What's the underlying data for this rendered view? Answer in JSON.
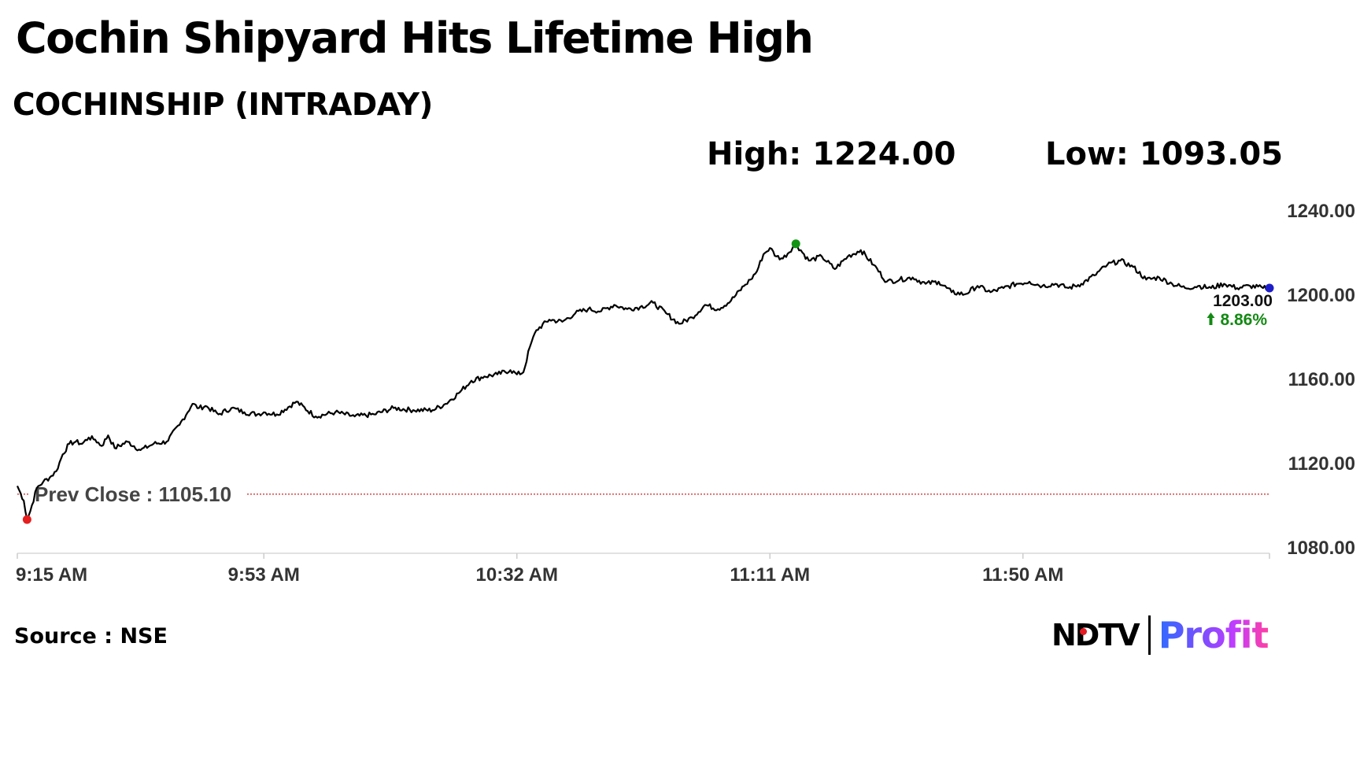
{
  "header": {
    "title": "Cochin Shipyard Hits Lifetime High",
    "subtitle": "COCHINSHIP (INTRADAY)",
    "high_text": "High: 1224.00",
    "low_text": "Low: 1093.05"
  },
  "footer": {
    "source": "Source : NSE",
    "logo_left": "NDTV",
    "logo_right": "Profit"
  },
  "colors": {
    "line": "#000000",
    "prev_close_line": "#d22020",
    "high_marker": "#139413",
    "low_marker": "#e61e1e",
    "last_marker": "#1e1ec8",
    "change_up": "#138a13",
    "axis_text": "#333333"
  },
  "chart_data": {
    "type": "line",
    "title": "",
    "xlabel": "",
    "ylabel": "",
    "ylim": [
      1080,
      1240
    ],
    "y_ticks": [
      "1240.00",
      "1200.00",
      "1160.00",
      "1120.00",
      "1080.00"
    ],
    "x_ticks": [
      "9:15 AM",
      "9:53 AM",
      "10:32 AM",
      "11:11 AM",
      "11:50 AM"
    ],
    "x_tick_minutes": [
      0,
      38,
      77,
      116,
      155
    ],
    "x_range_minutes": [
      0,
      193
    ],
    "grid": false,
    "prev_close": 1105.1,
    "prev_close_label": "Prev Close : 1105.10",
    "high": {
      "minute": 120,
      "value": 1224.0
    },
    "low": {
      "minute": 1.5,
      "value": 1093.05
    },
    "last": {
      "minute": 193,
      "value": 1203.0,
      "label": "1203.00",
      "change": "8.86%"
    },
    "series": [
      {
        "x": [
          0,
          1,
          1.5,
          2,
          3,
          4,
          5,
          6,
          7,
          8,
          9,
          10,
          11,
          12,
          13,
          14,
          15,
          17,
          19,
          21,
          23,
          25,
          27,
          28,
          29,
          31,
          33,
          35,
          37,
          38,
          40,
          43,
          46,
          49,
          52,
          55,
          58,
          61,
          64,
          66,
          68,
          70,
          72,
          74,
          76,
          77,
          78,
          79,
          80,
          82,
          84,
          86,
          88,
          90,
          92,
          94,
          96,
          98,
          100,
          102,
          104,
          106,
          108,
          110,
          112,
          113,
          114,
          115,
          116,
          117,
          118,
          120,
          122,
          124,
          126,
          128,
          130,
          132,
          134,
          136,
          138,
          140,
          142,
          144,
          146,
          148,
          150,
          152,
          154,
          156,
          158,
          160,
          162,
          164,
          166,
          168,
          170,
          172,
          174,
          176,
          178,
          180,
          182,
          184,
          186,
          188,
          190,
          192,
          193
        ],
        "y": [
          1109,
          1102,
          1093,
          1097,
          1108,
          1111,
          1113,
          1116,
          1124,
          1129,
          1130,
          1129,
          1132,
          1131,
          1128,
          1133,
          1127,
          1130,
          1126,
          1129,
          1130,
          1138,
          1148,
          1146,
          1147,
          1143,
          1146,
          1144,
          1143,
          1144,
          1143,
          1149,
          1142,
          1144,
          1142,
          1143,
          1146,
          1145,
          1145,
          1148,
          1153,
          1159,
          1161,
          1162,
          1164,
          1162,
          1163,
          1175,
          1183,
          1188,
          1187,
          1191,
          1193,
          1192,
          1195,
          1193,
          1194,
          1196,
          1191,
          1186,
          1189,
          1195,
          1193,
          1197,
          1204,
          1207,
          1211,
          1219,
          1222,
          1218,
          1217,
          1224,
          1216,
          1218,
          1212,
          1218,
          1221,
          1214,
          1206,
          1207,
          1208,
          1205,
          1206,
          1201,
          1200,
          1204,
          1201,
          1203,
          1205,
          1206,
          1204,
          1205,
          1203,
          1205,
          1209,
          1214,
          1216,
          1213,
          1207,
          1208,
          1205,
          1203,
          1204,
          1203,
          1205,
          1203,
          1204,
          1203,
          1203
        ]
      }
    ]
  }
}
